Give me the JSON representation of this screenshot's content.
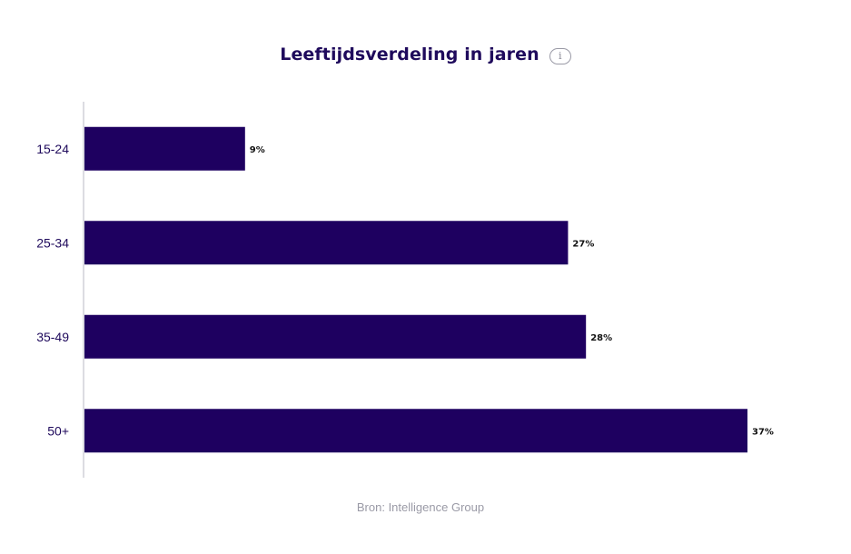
{
  "chart_data": {
    "type": "bar",
    "orientation": "horizontal",
    "title": "Leeftijdsverdeling in jaren",
    "categories": [
      "15-24",
      "25-34",
      "35-49",
      "50+"
    ],
    "values": [
      9,
      27,
      28,
      37
    ],
    "value_labels": [
      "9%",
      "27%",
      "28%",
      "37%"
    ],
    "unit": "%",
    "xlim": [
      0,
      37
    ],
    "grid": false,
    "legend": "none",
    "source": "Bron: Intelligence Group"
  },
  "colors": {
    "bar": "#1e0060",
    "title": "#1f0a5c",
    "axis": "#d0d0d8",
    "source": "#9a9aa6"
  },
  "icons": {
    "info": "info-icon"
  }
}
